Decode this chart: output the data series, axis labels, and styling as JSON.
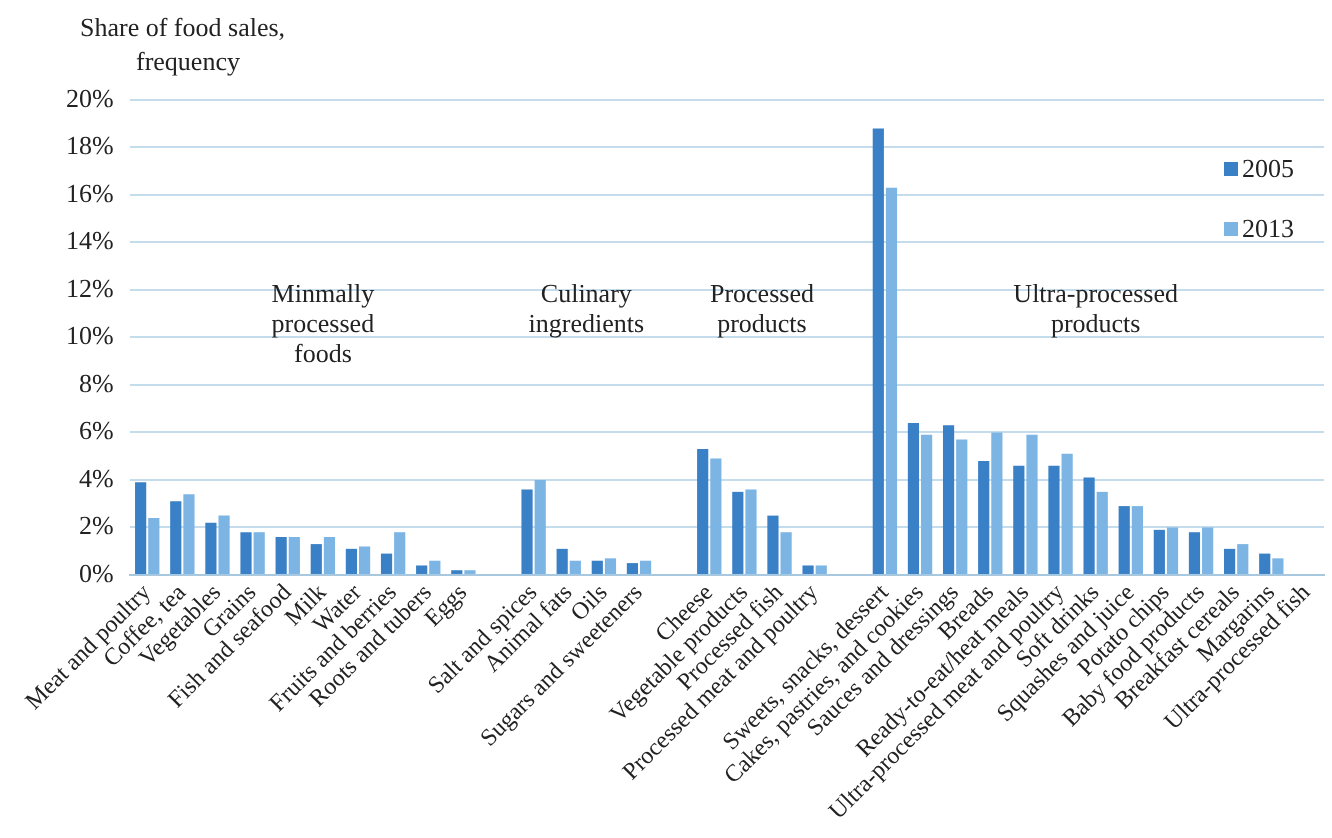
{
  "chart_data": {
    "type": "bar",
    "ylabel": "Share of food sales, frequency",
    "categories": [
      "Meat and poultry",
      "Coffee, tea",
      "Vegetables",
      "Grains",
      "Fish and seafood",
      "Milk",
      "Water",
      "Fruits and berries",
      "Roots and tubers",
      "Eggs",
      null,
      "Salt and spices",
      "Animal fats",
      "Oils",
      "Sugars and sweeteners",
      null,
      "Cheese",
      "Vegetable products",
      "Processed fish",
      "Processed meat and poultry",
      null,
      "Sweets, snacks, dessert",
      "Cakes, pastries, and cookies",
      "Sauces and dressings",
      "Breads",
      "Ready-to-eat/heat meals",
      "Ultra-processed meat and poultry",
      "Soft drinks",
      "Squashes and juice",
      "Potato chips",
      "Baby food products",
      "Breakfast cereals",
      "Margarins",
      "Ultra-processed fish"
    ],
    "series": [
      {
        "name": "2005",
        "color": "#3a80c6",
        "values": [
          3.9,
          3.1,
          2.2,
          1.8,
          1.6,
          1.3,
          1.1,
          0.9,
          0.4,
          0.2,
          null,
          3.6,
          1.1,
          0.6,
          0.5,
          null,
          5.3,
          3.5,
          2.5,
          0.4,
          null,
          18.8,
          6.4,
          6.3,
          4.8,
          4.6,
          4.6,
          4.1,
          2.9,
          1.9,
          1.8,
          1.1,
          0.9,
          null
        ]
      },
      {
        "name": "2013",
        "color": "#7cb4e4",
        "values": [
          2.4,
          3.4,
          2.5,
          1.8,
          1.6,
          1.6,
          1.2,
          1.8,
          0.6,
          0.2,
          null,
          4.0,
          0.6,
          0.7,
          0.6,
          null,
          4.9,
          3.6,
          1.8,
          0.4,
          null,
          16.3,
          5.9,
          5.7,
          6.0,
          5.9,
          5.1,
          3.5,
          2.9,
          2.0,
          2.0,
          1.3,
          0.7,
          null
        ]
      }
    ],
    "ylim": [
      0,
      20
    ],
    "yticks": [
      {
        "value": 0,
        "label": "0%"
      },
      {
        "value": 2,
        "label": "2%"
      },
      {
        "value": 4,
        "label": "4%"
      },
      {
        "value": 6,
        "label": "6%"
      },
      {
        "value": 8,
        "label": "8%"
      },
      {
        "value": 10,
        "label": "10%"
      },
      {
        "value": 12,
        "label": "12%"
      },
      {
        "value": 14,
        "label": "14%"
      },
      {
        "value": 16,
        "label": "16%"
      },
      {
        "value": 18,
        "label": "18%"
      },
      {
        "value": 20,
        "label": "20%"
      }
    ],
    "annotations": [
      "Minmally processed foods",
      "Culinary ingredients",
      "Processed products",
      "Ultra-processed products"
    ],
    "grid": "y",
    "legend": "top right"
  }
}
